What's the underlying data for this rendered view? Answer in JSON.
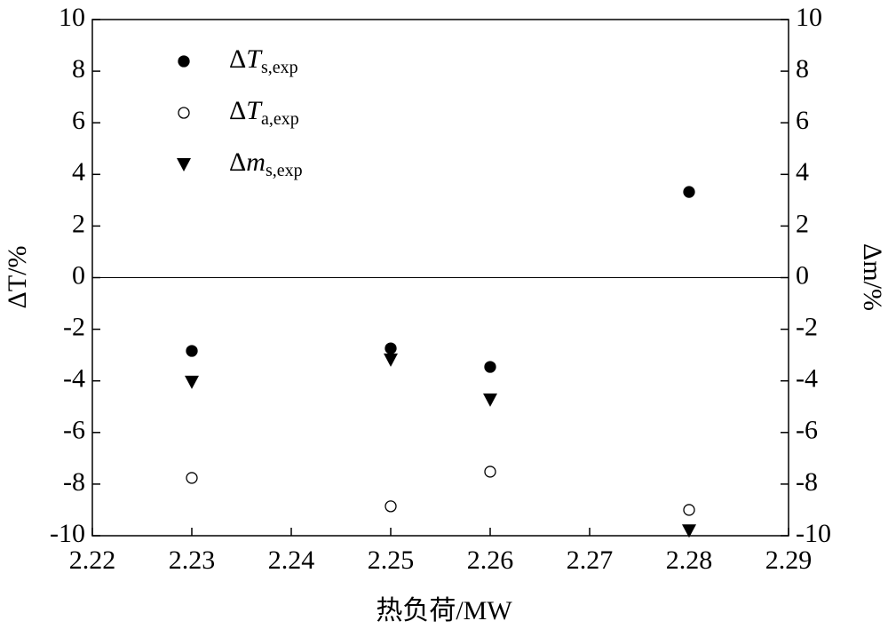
{
  "chart_data": {
    "type": "scatter",
    "x_label": "热负荷/MW",
    "y_label": "ΔT/%",
    "y2_label": "Δm/%",
    "xlim": [
      2.22,
      2.29
    ],
    "xticks": [
      2.22,
      2.23,
      2.24,
      2.25,
      2.26,
      2.27,
      2.28,
      2.29
    ],
    "ylim": [
      -10,
      10
    ],
    "yticks": [
      -10,
      -8,
      -6,
      -4,
      -2,
      0,
      2,
      4,
      6,
      8,
      10
    ],
    "y2lim": [
      -10,
      10
    ],
    "y2ticks": [
      -10,
      -8,
      -6,
      -4,
      -2,
      0,
      2,
      4,
      6,
      8,
      10
    ],
    "reference_line": 0,
    "series": [
      {
        "name": "ΔTs,exp",
        "color": "#000000",
        "marker": "circle",
        "x": [
          2.23,
          2.25,
          2.26,
          2.28
        ],
        "values": [
          -2.84,
          -2.74,
          -3.46,
          3.32
        ]
      },
      {
        "name": "ΔTa,exp",
        "color": "#000000",
        "marker": "open-circle",
        "x": [
          2.23,
          2.25,
          2.26,
          2.28
        ],
        "values": [
          -7.76,
          -8.86,
          -7.52,
          -9.0
        ]
      },
      {
        "name": "Δms,exp",
        "color": "#000000",
        "marker": "triangle-down",
        "axis": "y2",
        "x": [
          2.23,
          2.25,
          2.26,
          2.28
        ],
        "values": [
          -4.04,
          -3.18,
          -4.73,
          -9.8
        ]
      }
    ]
  }
}
